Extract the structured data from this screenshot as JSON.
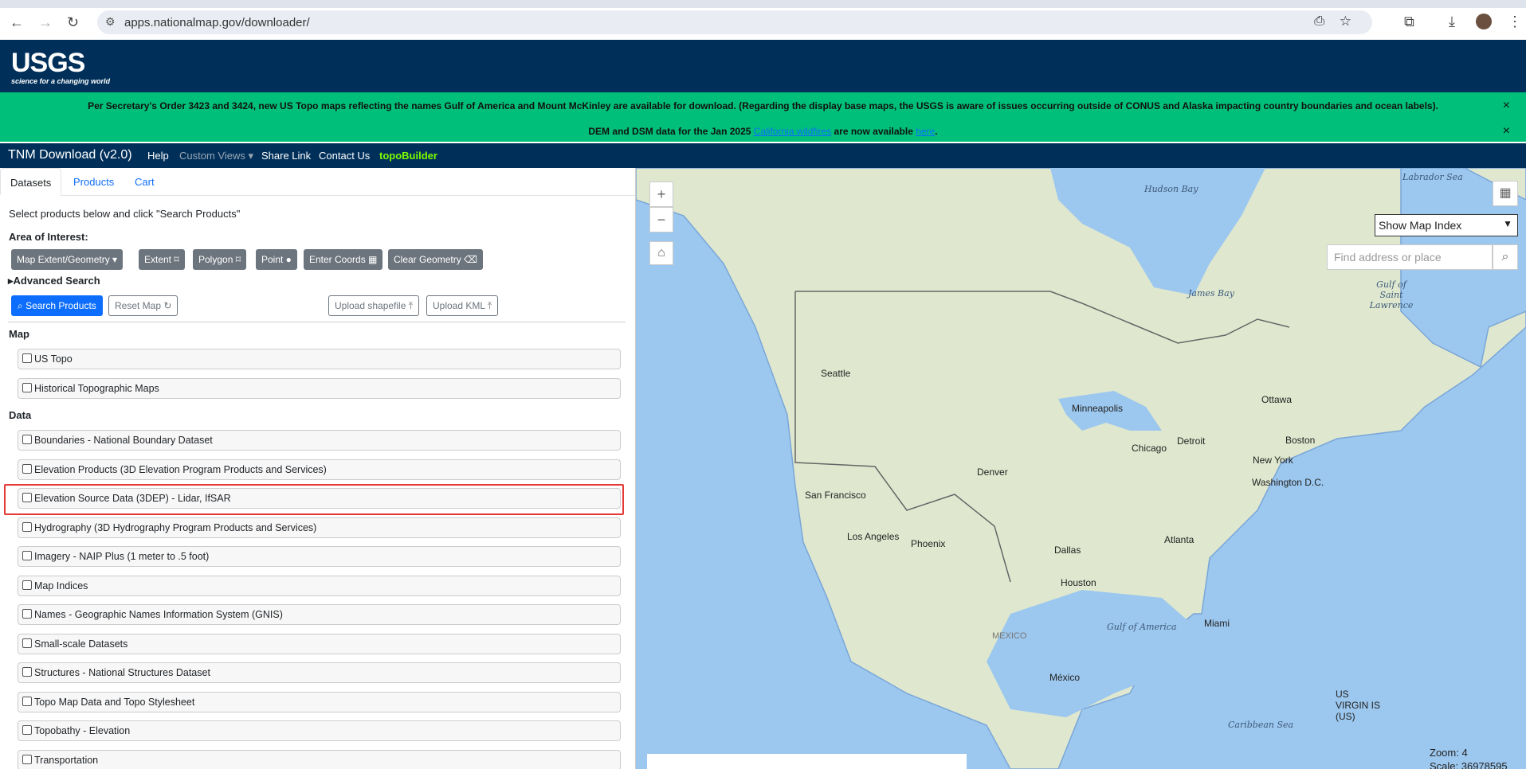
{
  "browser": {
    "url": "apps.nationalmap.gov/downloader/",
    "icons": [
      "back-icon",
      "forward-icon",
      "reload-icon",
      "site-settings-icon",
      "install-icon",
      "star-icon",
      "extensions-icon",
      "download-icon",
      "profile-avatar",
      "menu-icon"
    ]
  },
  "header": {
    "logo_text": "USGS",
    "logo_tagline": "science for a changing world"
  },
  "banner": {
    "line1": "Per Secretary's Order 3423 and 3424, new US Topo maps reflecting the names Gulf of America and Mount McKinley are available for download. (Regarding the display base maps, the USGS is aware of issues occurring outside of CONUS and Alaska impacting country boundaries and ocean labels).",
    "line2_pre": "DEM and DSM data for the Jan 2025 ",
    "line2_link1": "California wildfires",
    "line2_mid": " are now available ",
    "line2_link2": "here",
    "line2_post": ".",
    "close": "×",
    "bg_color": "#00bf7a"
  },
  "navbar": {
    "title": "TNM Download (v2.0)",
    "items": [
      "Help",
      "Custom Views ▾",
      "Share Link",
      "Contact Us",
      "topoBuilder"
    ]
  },
  "tabs": [
    "Datasets",
    "Products",
    "Cart"
  ],
  "panel": {
    "instruction": "Select products below and click \"Search Products\"",
    "aoi_label": "Area of Interest:",
    "aoi_buttons": [
      "Map Extent/Geometry ▾",
      "Extent ⌑",
      "Polygon ⌑",
      "Point ●",
      "Enter Coords ▦",
      "Clear Geometry ⌫"
    ],
    "advanced": "▸Advanced Search",
    "search": "Search Products",
    "reset": "Reset Map ↻",
    "upload_shp": "Upload shapefile ⤒",
    "upload_kml": "Upload KML ⤒",
    "map_section": "Map",
    "map_items": [
      "US Topo",
      "Historical Topographic Maps"
    ],
    "data_section": "Data",
    "data_items": [
      "Boundaries - National Boundary Dataset",
      "Elevation Products (3D Elevation Program Products and Services)",
      "Elevation Source Data (3DEP) - Lidar, IfSAR",
      "Hydrography (3D Hydrography Program Products and Services)",
      "Imagery - NAIP Plus (1 meter to .5 foot)",
      "Map Indices",
      "Names - Geographic Names Information System (GNIS)",
      "Small-scale Datasets",
      "Structures - National Structures Dataset",
      "Topo Map Data and Topo Stylesheet",
      "Topobathy - Elevation",
      "Transportation"
    ],
    "highlight_color": "#e53935"
  },
  "map": {
    "zoom_in": "+",
    "zoom_out": "−",
    "home": "⌂",
    "map_index": "Show Map Index",
    "search_placeholder": "Find address or place",
    "zoom_label": "Zoom: 4",
    "scale_label": "Scale: 36978595",
    "water_labels": [
      "Hudson Bay",
      "Labrador Sea",
      "James Bay",
      "Gulf of Saint Lawrence",
      "Gulf of America",
      "Caribbean Sea"
    ],
    "cities": [
      "Ottawa",
      "Seattle",
      "Minneapolis",
      "Chicago",
      "Detroit",
      "New York",
      "Boston",
      "Washington D.C.",
      "Denver",
      "San Francisco",
      "Los Angeles",
      "Phoenix",
      "Dallas",
      "Atlanta",
      "Houston",
      "Miami",
      "MEXICO",
      "México",
      "US VIRGIN IS (US)"
    ]
  }
}
